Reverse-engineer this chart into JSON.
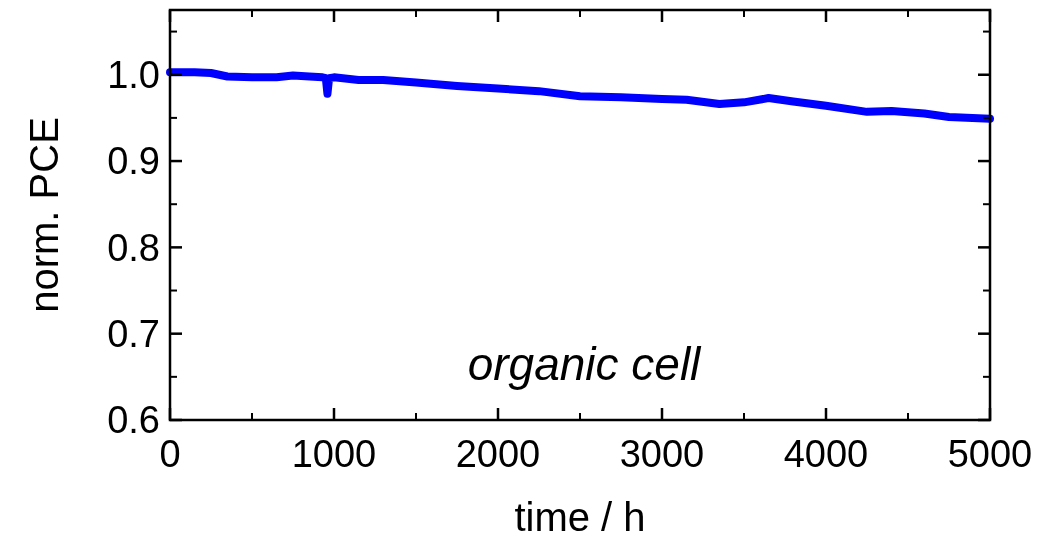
{
  "chart_data": {
    "type": "line",
    "xlabel": "time / h",
    "ylabel": "norm. PCE",
    "annotations": [
      "organic cell"
    ],
    "xlim": [
      0,
      5000
    ],
    "xticks": [
      0,
      1000,
      2000,
      3000,
      4000,
      5000
    ],
    "ylim": [
      0.6,
      1.075
    ],
    "yticks": [
      0.6,
      0.7,
      0.8,
      0.9,
      {
        "value": 1,
        "label": "1.0"
      }
    ],
    "grid": false,
    "marker": "none",
    "line_style": "solid",
    "series": [
      {
        "color": "#0000ff",
        "x": [
          0,
          150,
          250,
          350,
          500,
          650,
          750,
          850,
          930,
          950,
          960,
          970,
          1000,
          1150,
          1300,
          1500,
          1750,
          2000,
          2250,
          2500,
          2750,
          3000,
          3150,
          3350,
          3500,
          3650,
          3800,
          4000,
          4250,
          4400,
          4600,
          4750,
          5000
        ],
        "values": [
          1.003,
          1.003,
          1.002,
          0.998,
          0.997,
          0.997,
          0.999,
          0.998,
          0.997,
          0.996,
          0.978,
          0.996,
          0.997,
          0.994,
          0.994,
          0.991,
          0.987,
          0.984,
          0.981,
          0.975,
          0.974,
          0.972,
          0.971,
          0.966,
          0.968,
          0.973,
          0.969,
          0.964,
          0.957,
          0.958,
          0.955,
          0.951,
          0.949
        ]
      }
    ]
  }
}
